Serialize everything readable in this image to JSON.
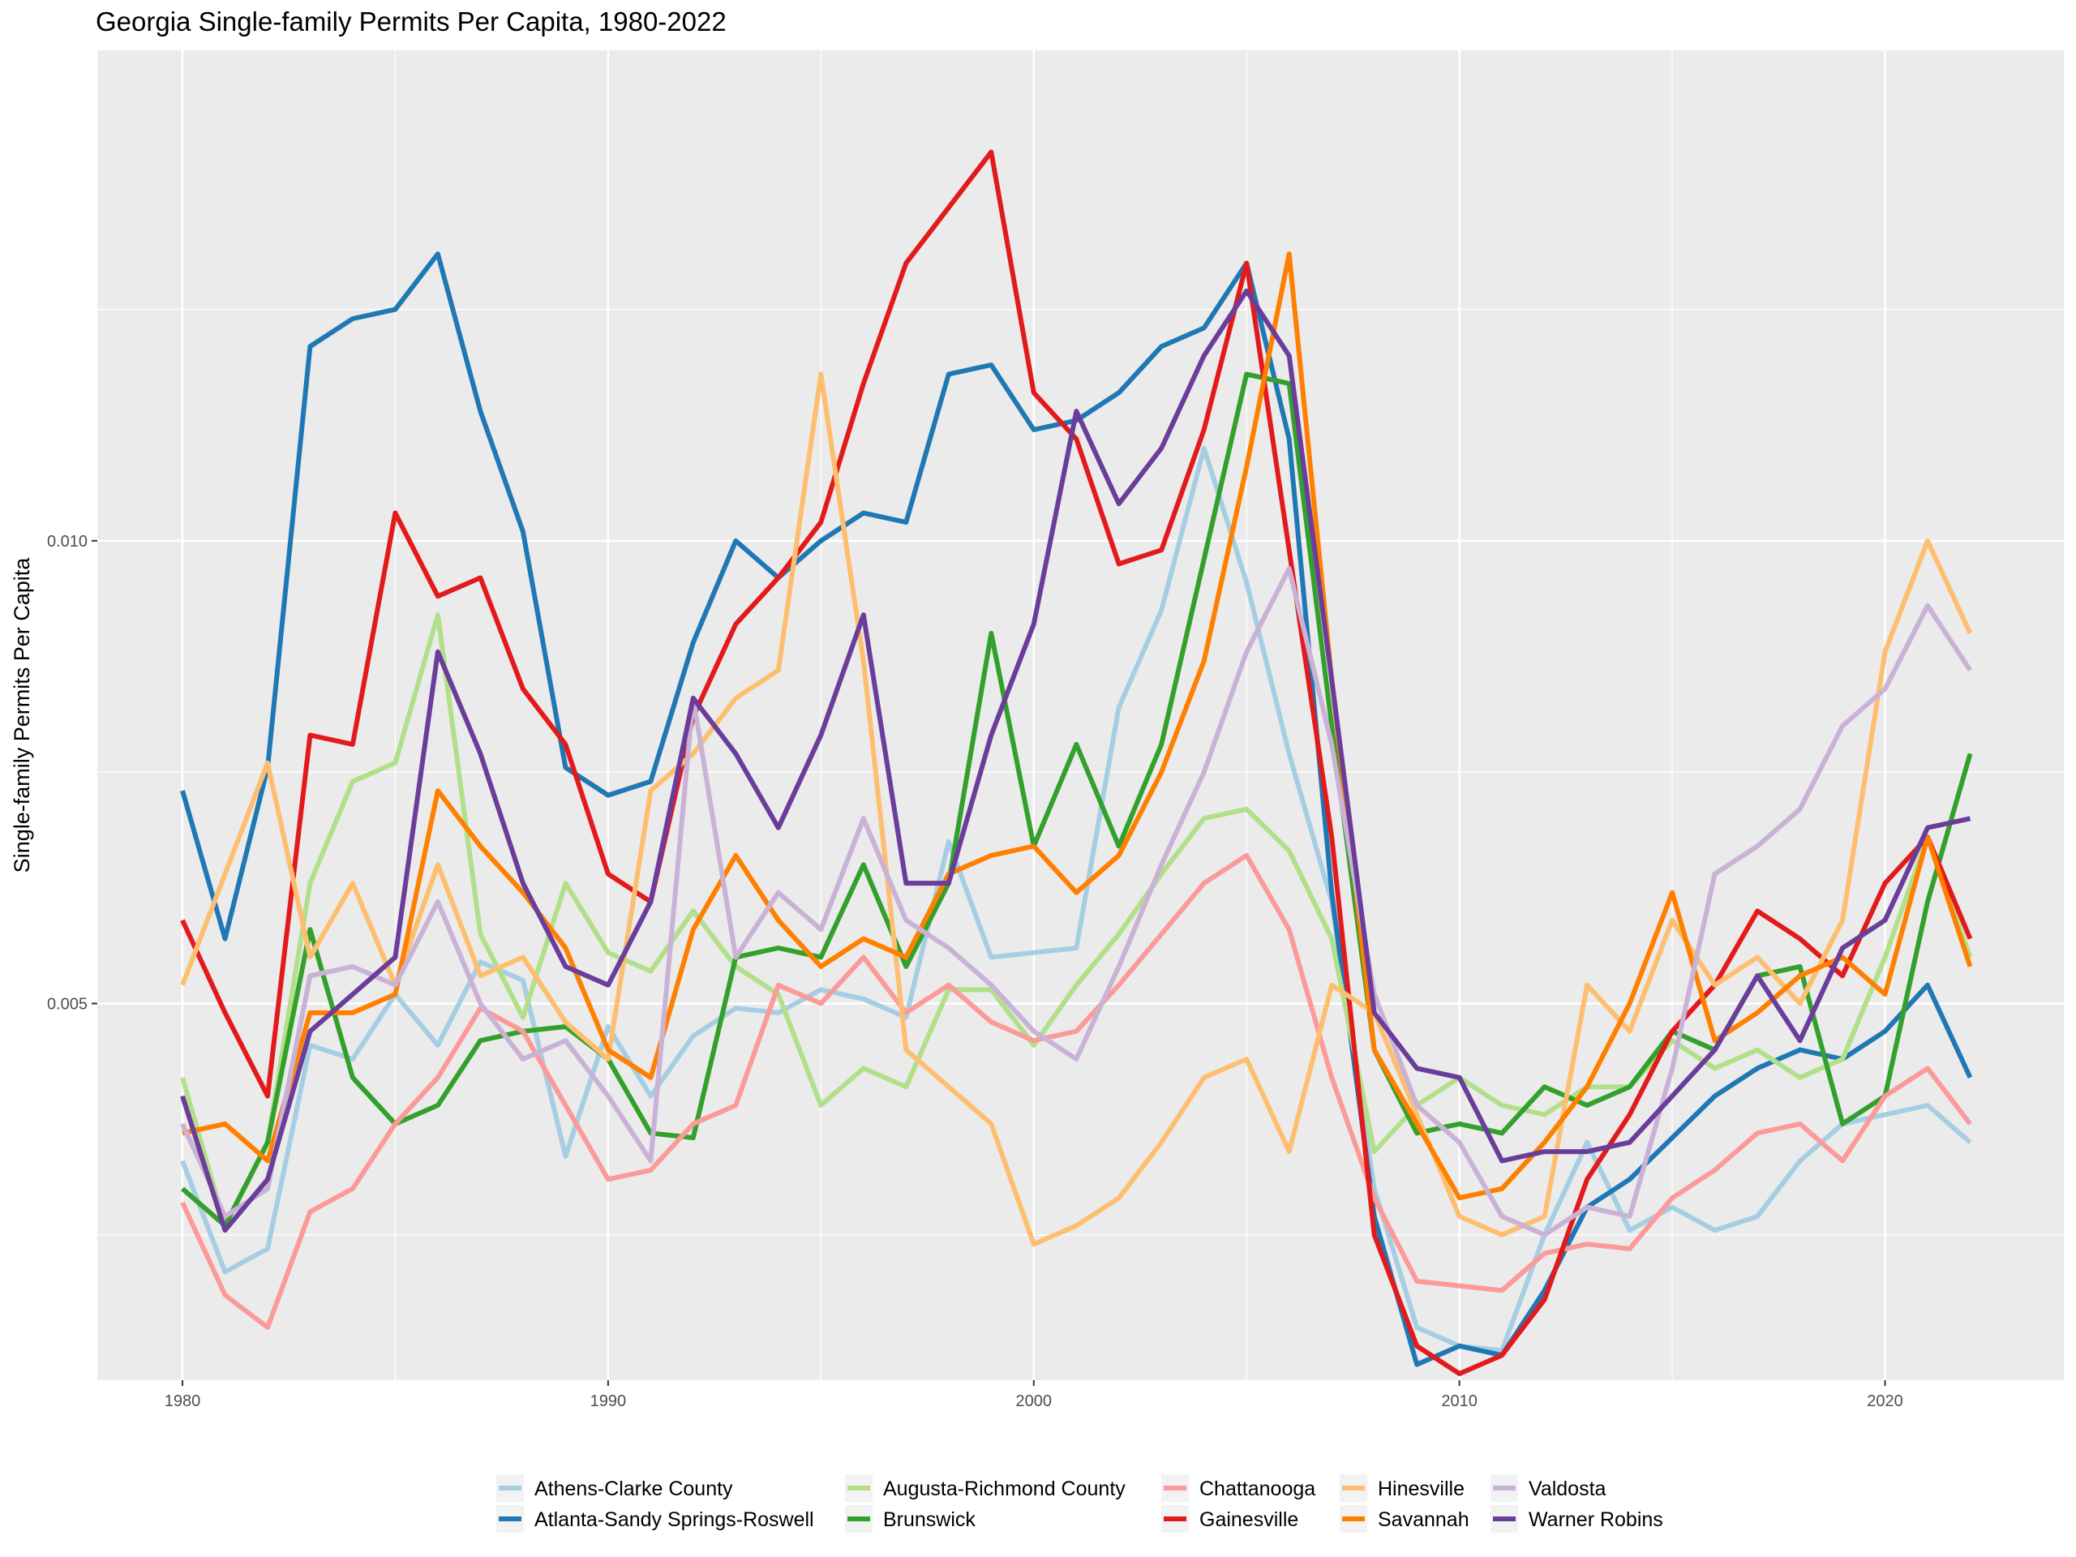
{
  "chart_data": {
    "type": "line",
    "title": "Georgia Single-family Permits Per Capita, 1980-2022",
    "xlabel": "",
    "ylabel": "Single-family Permits Per Capita",
    "xlim": [
      1978.0,
      2024.2
    ],
    "ylim": [
      0.00093,
      0.0153
    ],
    "x_ticks": [
      1980,
      1990,
      2000,
      2010,
      2020
    ],
    "y_ticks": [
      0.005,
      0.01
    ],
    "y_tick_labels": [
      "0.005",
      "0.010"
    ],
    "y_minor_gridlines": [
      0.0025,
      0.0075,
      0.0125
    ],
    "grid": true,
    "legend_position": "bottom",
    "x": [
      1980,
      1981,
      1982,
      1983,
      1984,
      1985,
      1986,
      1987,
      1988,
      1989,
      1990,
      1991,
      1992,
      1993,
      1994,
      1995,
      1996,
      1997,
      1998,
      1999,
      2000,
      2001,
      2002,
      2003,
      2004,
      2005,
      2006,
      2007,
      2008,
      2009,
      2010,
      2011,
      2012,
      2013,
      2014,
      2015,
      2016,
      2017,
      2018,
      2019,
      2020,
      2021,
      2022
    ],
    "series": [
      {
        "name": "Athens-Clarke County",
        "color": "#a6cee3",
        "values": [
          0.0033,
          0.0021,
          0.00235,
          0.00455,
          0.0044,
          0.0051,
          0.00455,
          0.00545,
          0.00525,
          0.00335,
          0.00475,
          0.004,
          0.00465,
          0.00495,
          0.0049,
          0.00515,
          0.00505,
          0.00485,
          0.00675,
          0.0055,
          0.00555,
          0.0056,
          0.0082,
          0.00925,
          0.011,
          0.00955,
          0.0077,
          0.0061,
          0.003,
          0.0015,
          0.0013,
          0.00125,
          0.0025,
          0.0035,
          0.00255,
          0.0028,
          0.00255,
          0.0027,
          0.0033,
          0.0037,
          0.0038,
          0.0039,
          0.0035
        ]
      },
      {
        "name": "Atlanta-Sandy Springs-Roswell",
        "color": "#1f78b4",
        "values": [
          0.0073,
          0.0057,
          0.00755,
          0.0121,
          0.0124,
          0.0125,
          0.0131,
          0.0114,
          0.0101,
          0.00755,
          0.00725,
          0.0074,
          0.0089,
          0.01,
          0.0096,
          0.01,
          0.0103,
          0.0102,
          0.0118,
          0.0119,
          0.0112,
          0.0113,
          0.0116,
          0.0121,
          0.0123,
          0.013,
          0.0111,
          0.0062,
          0.0027,
          0.0011,
          0.0013,
          0.0012,
          0.0019,
          0.0028,
          0.0031,
          0.00355,
          0.004,
          0.0043,
          0.0045,
          0.0044,
          0.0047,
          0.0052,
          0.0042
        ]
      },
      {
        "name": "Augusta-Richmond County",
        "color": "#b2df8a",
        "values": [
          0.0042,
          0.0026,
          0.0035,
          0.0063,
          0.0074,
          0.0076,
          0.0092,
          0.00575,
          0.00485,
          0.0063,
          0.00555,
          0.00535,
          0.006,
          0.0054,
          0.0051,
          0.0039,
          0.0043,
          0.0041,
          0.00515,
          0.00515,
          0.00455,
          0.0052,
          0.00575,
          0.0064,
          0.007,
          0.0071,
          0.00665,
          0.0057,
          0.0034,
          0.0039,
          0.0042,
          0.0039,
          0.0038,
          0.0041,
          0.0041,
          0.0046,
          0.0043,
          0.0045,
          0.0042,
          0.0044,
          0.0055,
          0.0068,
          0.0055
        ]
      },
      {
        "name": "Brunswick",
        "color": "#33a02c",
        "values": [
          0.003,
          0.0026,
          0.0035,
          0.0058,
          0.0042,
          0.0037,
          0.0039,
          0.0046,
          0.0047,
          0.00475,
          0.0044,
          0.0036,
          0.00355,
          0.0055,
          0.0056,
          0.0055,
          0.0065,
          0.0054,
          0.0063,
          0.009,
          0.0067,
          0.0078,
          0.0067,
          0.0078,
          0.0098,
          0.0118,
          0.0117,
          0.008,
          0.0045,
          0.0036,
          0.0037,
          0.0036,
          0.0041,
          0.0039,
          0.0041,
          0.0047,
          0.0045,
          0.0053,
          0.0054,
          0.0037,
          0.004,
          0.0061,
          0.0077
        ]
      },
      {
        "name": "Chattanooga",
        "color": "#fb9a99",
        "values": [
          0.00285,
          0.00185,
          0.0015,
          0.00275,
          0.003,
          0.0037,
          0.0042,
          0.00495,
          0.0047,
          0.0039,
          0.0031,
          0.0032,
          0.0037,
          0.0039,
          0.0052,
          0.005,
          0.0055,
          0.0049,
          0.0052,
          0.0048,
          0.0046,
          0.0047,
          0.0052,
          0.00575,
          0.0063,
          0.0066,
          0.0058,
          0.0042,
          0.0029,
          0.002,
          0.00195,
          0.0019,
          0.0023,
          0.0024,
          0.00235,
          0.0029,
          0.0032,
          0.0036,
          0.0037,
          0.0033,
          0.004,
          0.0043,
          0.0037
        ]
      },
      {
        "name": "Gainesville",
        "color": "#e31a1c",
        "values": [
          0.0059,
          0.0049,
          0.004,
          0.0079,
          0.0078,
          0.0103,
          0.0094,
          0.0096,
          0.0084,
          0.0078,
          0.0064,
          0.0061,
          0.0081,
          0.0091,
          0.0096,
          0.0102,
          0.0117,
          0.013,
          0.0136,
          0.0142,
          0.0116,
          0.0111,
          0.00975,
          0.0099,
          0.0112,
          0.013,
          0.0099,
          0.0068,
          0.0025,
          0.0013,
          0.001,
          0.0012,
          0.0018,
          0.0031,
          0.0038,
          0.0047,
          0.0052,
          0.006,
          0.0057,
          0.0053,
          0.0063,
          0.0068,
          0.0057
        ]
      },
      {
        "name": "Hinesville",
        "color": "#fdbf6f",
        "values": [
          0.0052,
          0.0064,
          0.0076,
          0.0055,
          0.0063,
          0.0052,
          0.0065,
          0.0053,
          0.0055,
          0.0048,
          0.0044,
          0.0073,
          0.0077,
          0.0083,
          0.0086,
          0.0118,
          0.0087,
          0.0045,
          0.0041,
          0.0037,
          0.0024,
          0.0026,
          0.0029,
          0.0035,
          0.0042,
          0.0044,
          0.0034,
          0.0052,
          0.0049,
          0.0038,
          0.0027,
          0.0025,
          0.0027,
          0.0052,
          0.0047,
          0.0059,
          0.0052,
          0.0055,
          0.005,
          0.0059,
          0.0088,
          0.01,
          0.009
        ]
      },
      {
        "name": "Savannah",
        "color": "#ff7f00",
        "values": [
          0.0036,
          0.0037,
          0.0033,
          0.0049,
          0.0049,
          0.0051,
          0.0073,
          0.0067,
          0.0062,
          0.0056,
          0.0045,
          0.0042,
          0.0058,
          0.0066,
          0.0059,
          0.0054,
          0.0057,
          0.0055,
          0.0064,
          0.0066,
          0.0067,
          0.0062,
          0.0066,
          0.0075,
          0.0087,
          0.0108,
          0.0131,
          0.0085,
          0.0045,
          0.0037,
          0.0029,
          0.003,
          0.0035,
          0.0041,
          0.005,
          0.0062,
          0.0046,
          0.0049,
          0.0053,
          0.0055,
          0.0051,
          0.0068,
          0.0054
        ]
      },
      {
        "name": "Valdosta",
        "color": "#cab2d6",
        "values": [
          0.0037,
          0.0027,
          0.003,
          0.0053,
          0.0054,
          0.0052,
          0.0061,
          0.005,
          0.0044,
          0.0046,
          0.004,
          0.0033,
          0.0083,
          0.0055,
          0.0062,
          0.0058,
          0.007,
          0.0059,
          0.0056,
          0.0052,
          0.0047,
          0.0044,
          0.0054,
          0.0065,
          0.0075,
          0.0088,
          0.0097,
          0.0078,
          0.0051,
          0.0039,
          0.0035,
          0.0027,
          0.0025,
          0.0028,
          0.0027,
          0.0043,
          0.0064,
          0.0067,
          0.0071,
          0.008,
          0.0084,
          0.0093,
          0.0086
        ]
      },
      {
        "name": "Warner Robins",
        "color": "#6a3d9a",
        "values": [
          0.004,
          0.00255,
          0.0031,
          0.0047,
          0.0051,
          0.0055,
          0.0088,
          0.0077,
          0.0063,
          0.0054,
          0.0052,
          0.0061,
          0.0083,
          0.0077,
          0.0069,
          0.0079,
          0.0092,
          0.0063,
          0.0063,
          0.0079,
          0.0091,
          0.0114,
          0.0104,
          0.011,
          0.012,
          0.0127,
          0.012,
          0.0085,
          0.0049,
          0.0043,
          0.0042,
          0.0033,
          0.0034,
          0.0034,
          0.0035,
          0.004,
          0.0045,
          0.0053,
          0.0046,
          0.0056,
          0.0059,
          0.0069,
          0.007
        ]
      }
    ],
    "legend_layout": [
      [
        "Athens-Clarke County",
        "Atlanta-Sandy Springs-Roswell"
      ],
      [
        "Augusta-Richmond County",
        "Brunswick"
      ],
      [
        "Chattanooga",
        "Gainesville"
      ],
      [
        "Hinesville",
        "Savannah"
      ],
      [
        "Valdosta",
        "Warner Robins"
      ]
    ]
  }
}
